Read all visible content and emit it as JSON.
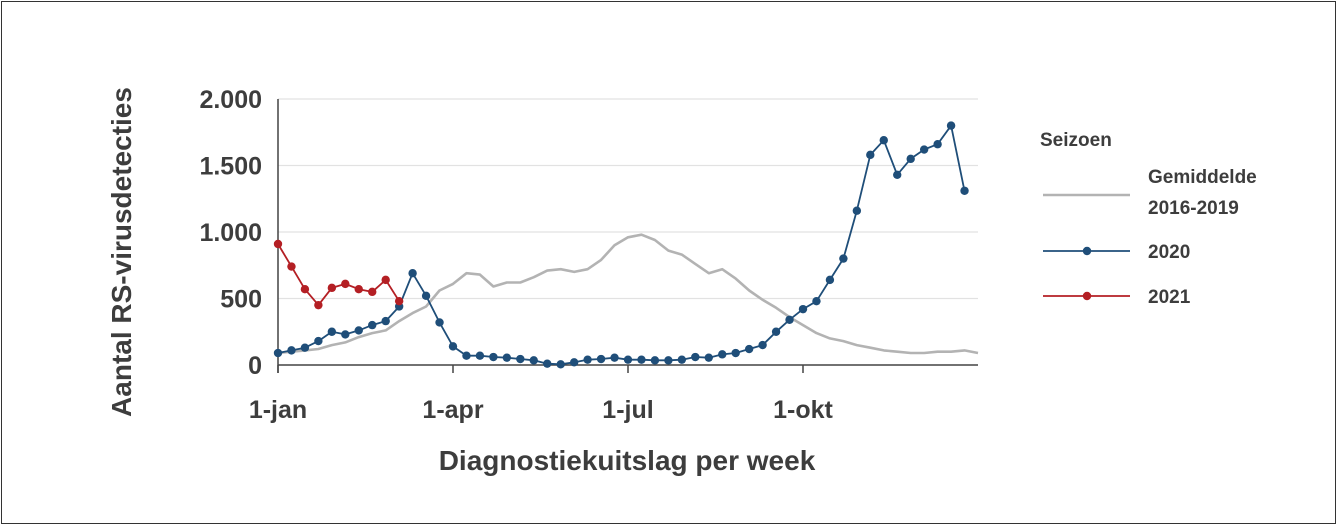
{
  "chart_data": {
    "type": "line",
    "xlabel": "Diagnostiekuitslag per week",
    "ylabel": "Aantal RS-virusdetecties",
    "x_ticks": [
      {
        "label": "1-jan",
        "week": 1
      },
      {
        "label": "1-apr",
        "week": 14
      },
      {
        "label": "1-jul",
        "week": 27
      },
      {
        "label": "1-okt",
        "week": 40
      }
    ],
    "x_range": [
      1,
      53
    ],
    "y_ticks": [
      {
        "label": "0",
        "value": 0
      },
      {
        "label": "500",
        "value": 500
      },
      {
        "label": "1.000",
        "value": 1000
      },
      {
        "label": "1.500",
        "value": 1500
      },
      {
        "label": "2.000",
        "value": 2000
      }
    ],
    "ylim": [
      0,
      2000
    ],
    "grid": "horizontal",
    "legend": {
      "title": "Seizoen",
      "position": "right"
    },
    "series": [
      {
        "name": "Gemiddelde 2016-2019",
        "name_lines": [
          "Gemiddelde",
          "2016-2019"
        ],
        "color": "#b3b3b3",
        "markers": false,
        "values": [
          90,
          100,
          110,
          120,
          150,
          170,
          210,
          240,
          260,
          330,
          390,
          440,
          560,
          610,
          690,
          680,
          590,
          620,
          620,
          660,
          710,
          720,
          700,
          720,
          790,
          900,
          960,
          980,
          940,
          860,
          830,
          760,
          690,
          720,
          650,
          560,
          490,
          430,
          360,
          300,
          240,
          200,
          180,
          150,
          130,
          110,
          100,
          90,
          90,
          100,
          100,
          110,
          90
        ]
      },
      {
        "name": "2020",
        "color": "#1f4e79",
        "markers": true,
        "values": [
          90,
          110,
          130,
          180,
          250,
          230,
          260,
          300,
          330,
          440,
          690,
          520,
          320,
          140,
          70,
          70,
          60,
          55,
          45,
          35,
          10,
          5,
          20,
          40,
          45,
          55,
          40,
          40,
          35,
          35,
          40,
          60,
          55,
          80,
          90,
          120,
          150,
          250,
          340,
          420,
          480,
          640,
          800,
          1160,
          1580,
          1690,
          1430,
          1550,
          1620,
          1660,
          1800,
          1310
        ]
      },
      {
        "name": "2021",
        "color": "#b41f24",
        "markers": true,
        "values": [
          910,
          740,
          570,
          450,
          580,
          610,
          570,
          550,
          640,
          480
        ]
      }
    ]
  }
}
